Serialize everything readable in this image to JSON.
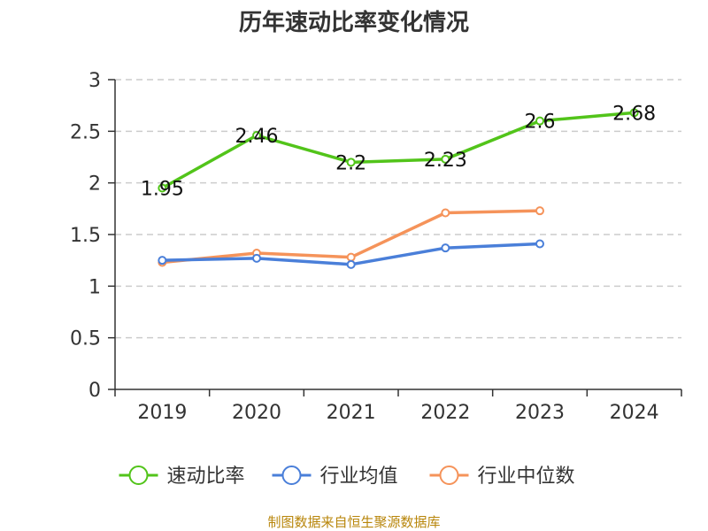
{
  "chart_data": {
    "type": "line",
    "title": "历年速动比率变化情况",
    "categories": [
      "2019",
      "2020",
      "2021",
      "2022",
      "2023",
      "2024"
    ],
    "ylim": [
      0,
      3
    ],
    "yticks": [
      0,
      0.5,
      1,
      1.5,
      2,
      2.5,
      3
    ],
    "ytick_labels": [
      "0",
      "0.5",
      "1",
      "1.5",
      "2",
      "2.5",
      "3"
    ],
    "grid": true,
    "legend_position": "bottom",
    "series": [
      {
        "name": "速动比率",
        "color": "#52c41a",
        "values": [
          1.95,
          2.46,
          2.2,
          2.23,
          2.6,
          2.68
        ],
        "labels": [
          "1.95",
          "2.46",
          "2.2",
          "2.23",
          "2.6",
          "2.68"
        ]
      },
      {
        "name": "行业均值",
        "color": "#4a7fd9",
        "values": [
          1.25,
          1.27,
          1.21,
          1.37,
          1.41,
          null
        ]
      },
      {
        "name": "行业中位数",
        "color": "#f5935a",
        "values": [
          1.23,
          1.32,
          1.28,
          1.71,
          1.73,
          null
        ]
      }
    ],
    "source": "制图数据来自恒生聚源数据库"
  }
}
